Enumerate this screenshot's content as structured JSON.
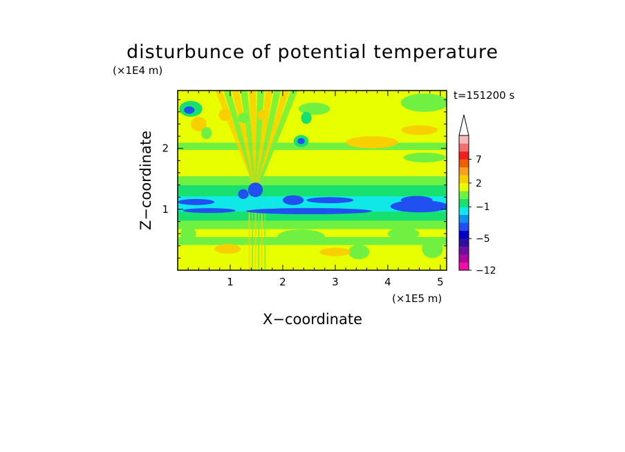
{
  "chart_data": {
    "type": "heatmap",
    "title": "disturbunce of potential temperature",
    "xlabel": "X−coordinate",
    "ylabel": "Z−coordinate",
    "x_unit": "(×1E5 m)",
    "y_unit": "(×1E4 m)",
    "time_label": "t=151200 s",
    "xlim": [
      0,
      5.12
    ],
    "ylim": [
      0,
      2.95
    ],
    "x_ticks": [
      {
        "value": 1,
        "label": "1"
      },
      {
        "value": 2,
        "label": "2"
      },
      {
        "value": 3,
        "label": "3"
      },
      {
        "value": 4,
        "label": "4"
      },
      {
        "value": 5,
        "label": "5"
      }
    ],
    "y_ticks": [
      {
        "value": 1,
        "label": "1"
      },
      {
        "value": 2,
        "label": "2"
      }
    ],
    "colorbar": {
      "levels": [
        -12,
        -10,
        -8,
        -6,
        -5,
        -4,
        -3,
        -2,
        -1,
        0,
        1,
        2,
        3,
        5,
        7,
        9,
        11,
        13
      ],
      "colors": [
        "#f010a8",
        "#b0089c",
        "#7010a0",
        "#2c10a0",
        "#0000c8",
        "#2050f0",
        "#1090f0",
        "#10e8e8",
        "#18e070",
        "#70f040",
        "#e8ff00",
        "#f8d000",
        "#f8a020",
        "#f06000",
        "#f02020",
        "#f07070",
        "#f8b8b8"
      ],
      "extend_max": true,
      "tick_labels": [
        {
          "value": 7,
          "label": "7"
        },
        {
          "value": 2,
          "label": "2"
        },
        {
          "value": -1,
          "label": "−1"
        },
        {
          "value": -5,
          "label": "−5"
        },
        {
          "value": -12,
          "label": "−12"
        }
      ]
    },
    "field": {
      "background": 1,
      "bands": [
        {
          "z0": 0.0,
          "z1": 0.42,
          "value": 1
        },
        {
          "z0": 0.42,
          "z1": 0.55,
          "value": 0
        },
        {
          "z0": 0.55,
          "z1": 0.68,
          "value": 1
        },
        {
          "z0": 0.68,
          "z1": 0.82,
          "value": 0
        },
        {
          "z0": 0.82,
          "z1": 0.97,
          "value": -1
        },
        {
          "z0": 0.97,
          "z1": 1.22,
          "value": -2
        },
        {
          "z0": 1.22,
          "z1": 1.4,
          "value": -1
        },
        {
          "z0": 1.4,
          "z1": 1.55,
          "value": 0
        },
        {
          "z0": 1.55,
          "z1": 1.98,
          "value": 1
        },
        {
          "z0": 1.98,
          "z1": 2.1,
          "value": 0
        },
        {
          "z0": 2.1,
          "z1": 2.95,
          "value": 1
        }
      ],
      "blobs": [
        {
          "x": 0.25,
          "z": 2.65,
          "rx": 0.22,
          "rz": 0.13,
          "value": -1
        },
        {
          "x": 0.22,
          "z": 2.63,
          "rx": 0.1,
          "rz": 0.06,
          "value": -4
        },
        {
          "x": 0.4,
          "z": 2.4,
          "rx": 0.15,
          "rz": 0.12,
          "value": 2
        },
        {
          "x": 0.55,
          "z": 2.25,
          "rx": 0.1,
          "rz": 0.1,
          "value": 0
        },
        {
          "x": 0.9,
          "z": 2.55,
          "rx": 0.12,
          "rz": 0.1,
          "value": 2
        },
        {
          "x": 1.25,
          "z": 2.5,
          "rx": 0.1,
          "rz": 0.08,
          "value": 0
        },
        {
          "x": 1.6,
          "z": 2.55,
          "rx": 0.08,
          "rz": 0.08,
          "value": 2
        },
        {
          "x": 2.6,
          "z": 2.65,
          "rx": 0.3,
          "rz": 0.1,
          "value": 0
        },
        {
          "x": 2.45,
          "z": 2.5,
          "rx": 0.1,
          "rz": 0.1,
          "value": -1
        },
        {
          "x": 2.35,
          "z": 2.12,
          "rx": 0.14,
          "rz": 0.1,
          "value": -1
        },
        {
          "x": 2.35,
          "z": 2.12,
          "rx": 0.07,
          "rz": 0.05,
          "value": -4
        },
        {
          "x": 4.7,
          "z": 2.75,
          "rx": 0.45,
          "rz": 0.15,
          "value": 0
        },
        {
          "x": 3.7,
          "z": 2.1,
          "rx": 0.5,
          "rz": 0.1,
          "value": 2
        },
        {
          "x": 4.6,
          "z": 2.3,
          "rx": 0.35,
          "rz": 0.08,
          "value": 2
        },
        {
          "x": 4.7,
          "z": 1.85,
          "rx": 0.4,
          "rz": 0.08,
          "value": 0
        },
        {
          "x": 0.35,
          "z": 1.12,
          "rx": 0.35,
          "rz": 0.05,
          "value": -4
        },
        {
          "x": 1.25,
          "z": 1.25,
          "rx": 0.1,
          "rz": 0.08,
          "value": -4
        },
        {
          "x": 1.48,
          "z": 1.32,
          "rx": 0.14,
          "rz": 0.12,
          "value": -4
        },
        {
          "x": 2.2,
          "z": 1.15,
          "rx": 0.2,
          "rz": 0.08,
          "value": -4
        },
        {
          "x": 2.9,
          "z": 1.15,
          "rx": 0.45,
          "rz": 0.05,
          "value": -4
        },
        {
          "x": 0.6,
          "z": 0.98,
          "rx": 0.5,
          "rz": 0.04,
          "value": -4
        },
        {
          "x": 2.5,
          "z": 0.97,
          "rx": 1.2,
          "rz": 0.05,
          "value": -4
        },
        {
          "x": 4.6,
          "z": 1.05,
          "rx": 0.55,
          "rz": 0.1,
          "value": -4
        },
        {
          "x": 4.55,
          "z": 1.15,
          "rx": 0.3,
          "rz": 0.07,
          "value": -4
        },
        {
          "x": 0.2,
          "z": 0.6,
          "rx": 0.15,
          "rz": 0.12,
          "value": 0
        },
        {
          "x": 2.35,
          "z": 0.55,
          "rx": 0.45,
          "rz": 0.12,
          "value": 0
        },
        {
          "x": 3.45,
          "z": 0.3,
          "rx": 0.2,
          "rz": 0.12,
          "value": 0
        },
        {
          "x": 4.85,
          "z": 0.35,
          "rx": 0.2,
          "rz": 0.15,
          "value": 0
        },
        {
          "x": 4.3,
          "z": 0.6,
          "rx": 0.3,
          "rz": 0.1,
          "value": 0
        },
        {
          "x": 0.95,
          "z": 0.35,
          "rx": 0.25,
          "rz": 0.08,
          "value": 2
        },
        {
          "x": 3.0,
          "z": 0.3,
          "rx": 0.3,
          "rz": 0.07,
          "value": 2
        }
      ],
      "fan": {
        "x0": 1.5,
        "z0": 1.3,
        "spread": 0.72,
        "rays": 10
      }
    }
  }
}
